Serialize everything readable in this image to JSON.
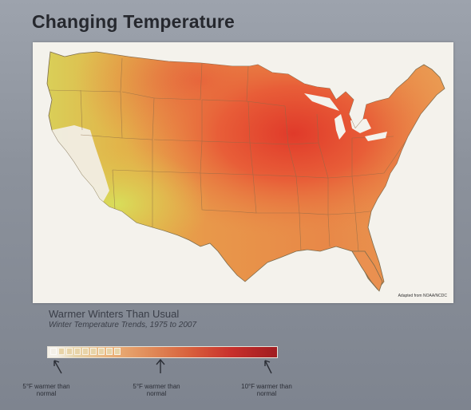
{
  "title": "Changing Temperature",
  "map": {
    "credit": "Adapted from NOAA/NCDC"
  },
  "caption": {
    "main": "Warmer Winters Than Usual",
    "sub": "Winter Temperature Trends, 1975 to 2007"
  },
  "legend": {
    "left_label": "5°F warmer than normal",
    "mid_label": "5°F warmer than normal",
    "right_label": "10°F warmer than normal",
    "colors": [
      "#f4f0e8",
      "#e8d4a8",
      "#eab078",
      "#e08a58",
      "#d8603c",
      "#c8302c",
      "#a01c20"
    ]
  }
}
